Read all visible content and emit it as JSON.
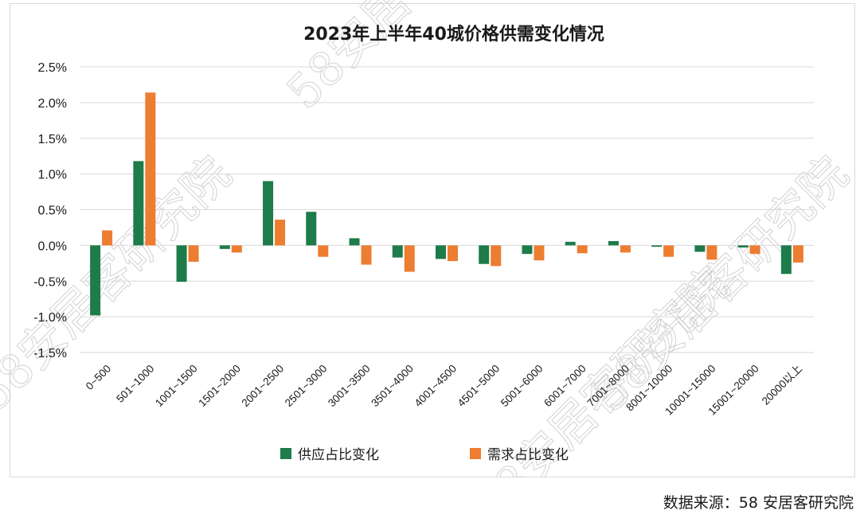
{
  "chart_data": {
    "type": "bar",
    "title": "2023年上半年40城价格供需变化情况",
    "categories": [
      "0~500",
      "501~1000",
      "1001~1500",
      "1501~2000",
      "2001~2500",
      "2501~3000",
      "3001~3500",
      "3501~4000",
      "4001~4500",
      "4501~5000",
      "5001~6000",
      "6001~7000",
      "7001~8000",
      "8001~10000",
      "10001~15000",
      "15001~20000",
      "20000以上"
    ],
    "series": [
      {
        "name": "供应占比变化",
        "color": "#1e7b4a",
        "values": [
          -0.98,
          1.18,
          -0.51,
          -0.05,
          0.9,
          0.47,
          0.1,
          -0.17,
          -0.19,
          -0.26,
          -0.12,
          0.05,
          0.06,
          -0.02,
          -0.09,
          -0.03,
          -0.4
        ]
      },
      {
        "name": "需求占比变化",
        "color": "#ed7d31",
        "values": [
          0.21,
          2.14,
          -0.23,
          -0.1,
          0.36,
          -0.16,
          -0.27,
          -0.37,
          -0.22,
          -0.29,
          -0.21,
          -0.11,
          -0.1,
          -0.16,
          -0.2,
          -0.12,
          -0.24
        ]
      }
    ],
    "ylim": [
      -1.5,
      2.5
    ],
    "yticks": [
      "2.5%",
      "2.0%",
      "1.5%",
      "1.0%",
      "0.5%",
      "0.0%",
      "-0.5%",
      "-1.0%",
      "-1.5%"
    ],
    "grid": true,
    "legend_position": "bottom"
  },
  "source": "数据来源：58 安居客研究院",
  "watermark": "58安居客研究院"
}
